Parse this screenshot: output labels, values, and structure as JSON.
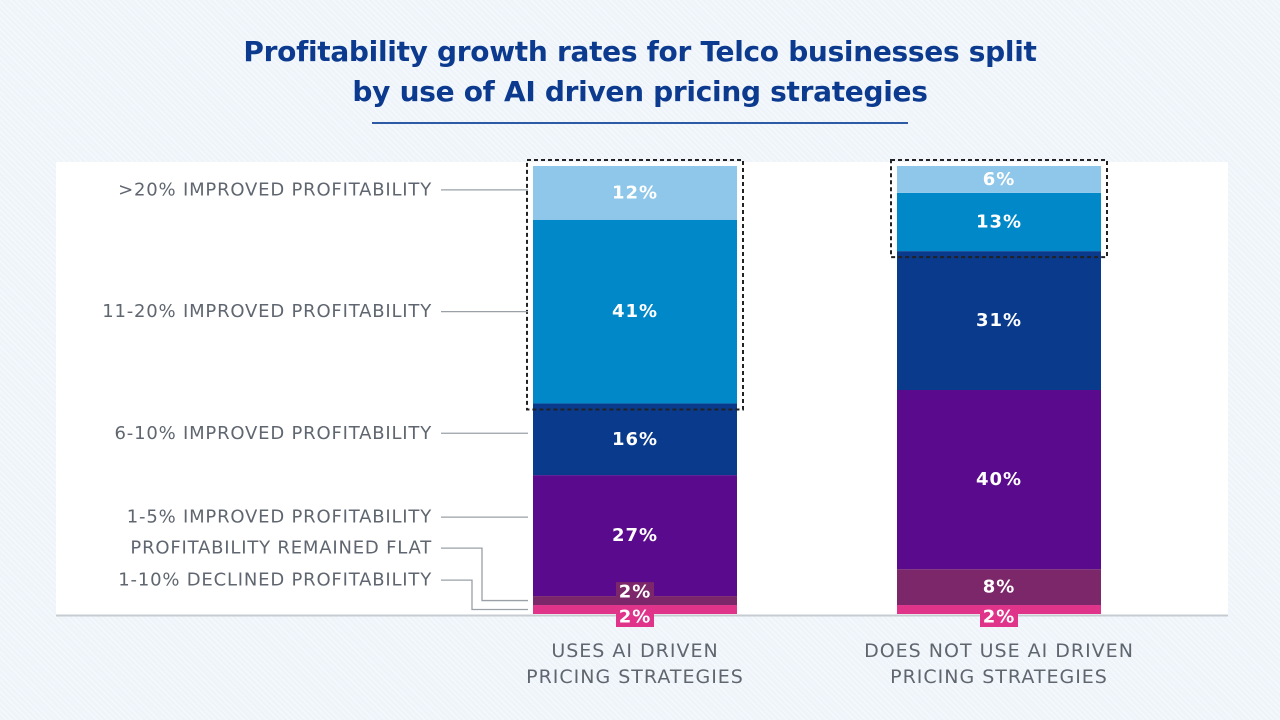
{
  "chart_data": {
    "type": "bar",
    "stacked": true,
    "title_lines": [
      "Profitability growth rates for Telco businesses split",
      "by use of AI driven pricing strategies"
    ],
    "categories": [
      [
        "USES AI DRIVEN",
        "PRICING STRATEGIES"
      ],
      [
        "DOES NOT USE AI DRIVEN",
        "PRICING STRATEGIES"
      ]
    ],
    "series": [
      {
        "name": "1-10% DECLINED PROFITABILITY",
        "values": [
          2,
          2
        ],
        "color": "#e0338a",
        "labels": [
          "2%",
          "2%"
        ]
      },
      {
        "name": "PROFITABILITY REMAINED FLAT",
        "values": [
          2,
          8
        ],
        "color": "#7b2769",
        "labels": [
          "2%",
          "8%"
        ]
      },
      {
        "name": "1-5% IMPROVED PROFITABILITY",
        "values": [
          27,
          40
        ],
        "color": "#5a0a8c",
        "labels": [
          "27%",
          "40%"
        ]
      },
      {
        "name": "6-10% IMPROVED PROFITABILITY",
        "values": [
          16,
          31
        ],
        "color": "#0a3a8c",
        "labels": [
          "16%",
          "31%"
        ]
      },
      {
        "name": "11-20% IMPROVED PROFITABILITY",
        "values": [
          41,
          13
        ],
        "color": "#0088c8",
        "labels": [
          "41%",
          "13%"
        ]
      },
      {
        "name": ">20% IMPROVED PROFITABILITY",
        "values": [
          12,
          6
        ],
        "color": "#8ec7ea",
        "labels": [
          "12%",
          "6%"
        ]
      }
    ],
    "highlight": [
      {
        "category_index": 0,
        "series_from": 4,
        "series_to": 5
      },
      {
        "category_index": 1,
        "series_from": 4,
        "series_to": 5
      }
    ],
    "legend_placement": "left",
    "ylim": [
      0,
      100
    ],
    "grid": false
  },
  "colors": {
    "title": "#0b3a8f",
    "label_text": "#5f6670",
    "axis": "#c7ccd2",
    "leader": "#9aa0a6",
    "highlight_border": "#222222"
  }
}
